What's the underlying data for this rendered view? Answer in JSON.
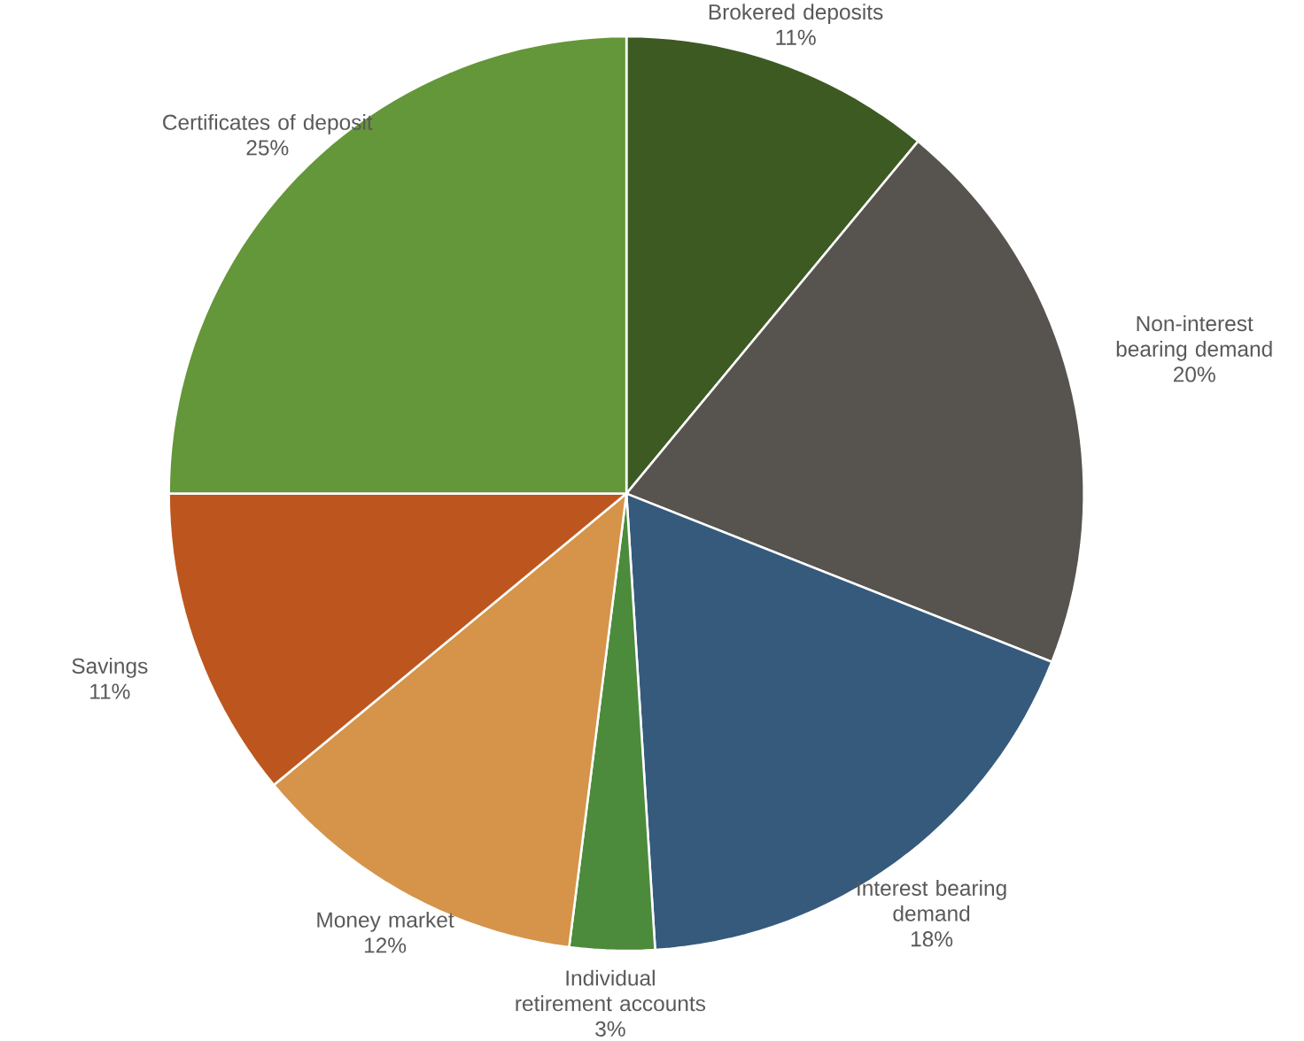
{
  "chart_data": {
    "type": "pie",
    "categories": [
      "Brokered deposits",
      "Non-interest bearing demand",
      "Interest bearing demand",
      "Individual retirement accounts",
      "Money market",
      "Savings",
      "Certificates of deposit"
    ],
    "values": [
      11,
      20,
      18,
      3,
      12,
      11,
      25
    ],
    "value_labels": [
      "11%",
      "20%",
      "18%",
      "3%",
      "12%",
      "11%",
      "25%"
    ],
    "colors": [
      "#3d5a23",
      "#57534f",
      "#355a7c",
      "#4b8b3b",
      "#d5944a",
      "#bd561e",
      "#64963a"
    ],
    "legend": false
  }
}
